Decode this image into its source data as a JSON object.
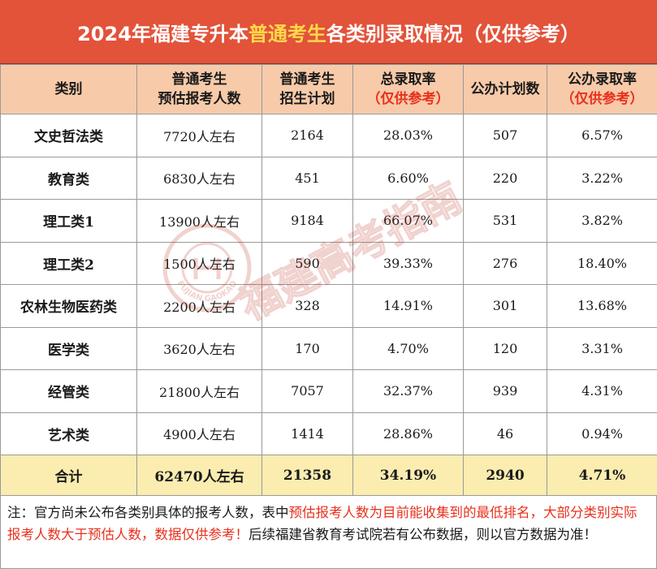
{
  "title": {
    "part1": "2024年福建专升本",
    "highlight": "普通考生",
    "part2": "各类别录取情况（仅供参考）"
  },
  "headers": {
    "category": "类别",
    "applicants_line1": "普通考生",
    "applicants_line2": "预估报考人数",
    "plan_line1": "普通考生",
    "plan_line2": "招生计划",
    "rate_line1": "总录取率",
    "rate_line2": "（仅供参考）",
    "public_plan": "公办计划数",
    "public_rate_line1": "公办录取率",
    "public_rate_line2": "（仅供参考）"
  },
  "rows": [
    {
      "category": "文史哲法类",
      "applicants": "7720人左右",
      "plan": "2164",
      "rate": "28.03%",
      "public_plan": "507",
      "public_rate": "6.57%"
    },
    {
      "category": "教育类",
      "applicants": "6830人左右",
      "plan": "451",
      "rate": "6.60%",
      "public_plan": "220",
      "public_rate": "3.22%"
    },
    {
      "category": "理工类1",
      "applicants": "13900人左右",
      "plan": "9184",
      "rate": "66.07%",
      "public_plan": "531",
      "public_rate": "3.82%"
    },
    {
      "category": "理工类2",
      "applicants": "1500人左右",
      "plan": "590",
      "rate": "39.33%",
      "public_plan": "276",
      "public_rate": "18.40%"
    },
    {
      "category": "农林生物医药类",
      "applicants": "2200人左右",
      "plan": "328",
      "rate": "14.91%",
      "public_plan": "301",
      "public_rate": "13.68%"
    },
    {
      "category": "医学类",
      "applicants": "3620人左右",
      "plan": "170",
      "rate": "4.70%",
      "public_plan": "120",
      "public_rate": "3.31%"
    },
    {
      "category": "经管类",
      "applicants": "21800人左右",
      "plan": "7057",
      "rate": "32.37%",
      "public_plan": "939",
      "public_rate": "4.31%"
    },
    {
      "category": "艺术类",
      "applicants": "4900人左右",
      "plan": "1414",
      "rate": "28.86%",
      "public_plan": "46",
      "public_rate": "0.94%"
    }
  ],
  "total": {
    "category": "合计",
    "applicants": "62470人左右",
    "plan": "21358",
    "rate": "34.19%",
    "public_plan": "2940",
    "public_rate": "4.71%"
  },
  "note": {
    "part1": "注：官方尚未公布各类别具体的报考人数，表中",
    "part2_red": "预估报考人数为目前能收集到的最低排名，大部分类别实际报考人数大于预估人数，数据仅供参考！",
    "part3": "后续福建省教育考试院若有公布数据，则以官方数据为准！"
  },
  "watermark": {
    "text": "福建高考指南",
    "seal_text": "FUJIAN GAOKAO"
  },
  "colors": {
    "title_bg": "#e2533a",
    "title_highlight": "#ffd84a",
    "header_bg": "#f7caa9",
    "total_bg": "#fbecb0",
    "red_text": "#e8301c"
  }
}
